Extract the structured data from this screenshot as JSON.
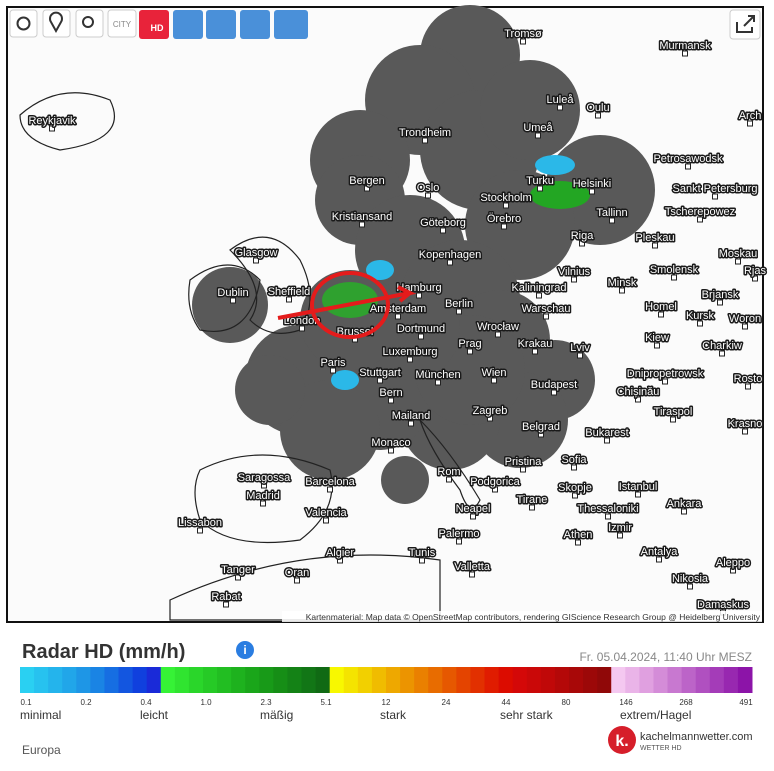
{
  "toolbar": {
    "city": "CITY",
    "hd": "HD"
  },
  "map": {
    "cities": [
      "Tromsø",
      "Murmansk",
      "Luleå",
      "Oulu",
      "Arch",
      "Reykjavik",
      "Trondheim",
      "Umeå",
      "Petrosawodsk",
      "Bergen",
      "Oslo",
      "Turku",
      "Helsinki",
      "Sankt Petersburg",
      "Stockholm",
      "Kristiansand",
      "Göteborg",
      "Örebro",
      "Tallinn",
      "Tscherepowez",
      "Riga",
      "Pleskau",
      "Glasgow",
      "Kopenhagen",
      "Moskau",
      "Vilnius",
      "Smolensk",
      "Rjas",
      "Minsk",
      "Dublin",
      "Sheffield",
      "Hamburg",
      "Kaliningrad",
      "Brjansk",
      "Berlin",
      "Amsterdam",
      "Warschau",
      "Homel",
      "London",
      "Wrocław",
      "Kursk",
      "Woron",
      "Brussel",
      "Dortmund",
      "Kiew",
      "Prag",
      "Krakau",
      "Lviv",
      "Charkiw",
      "Luxemburg",
      "Paris",
      "Stuttgart",
      "München",
      "Wien",
      "Dnipropetrowsk",
      "Rosto",
      "Budapest",
      "Chișinău",
      "Bern",
      "Tiraspol",
      "Mailand",
      "Zagreb",
      "Krasno",
      "Belgrad",
      "Bukarest",
      "Monaco",
      "Pristina",
      "Sofia",
      "Rom",
      "Saragossa",
      "Barcelona",
      "Podgorica",
      "Istanbul",
      "Skopje",
      "Madrid",
      "Tirane",
      "Ankara",
      "Neapel",
      "Thessaloniki",
      "Valencia",
      "Lissabon",
      "Izmir",
      "Palermo",
      "Athen",
      "Algier",
      "Tunis",
      "Antalya",
      "Valletta",
      "Aleppo",
      "Tanger",
      "Oran",
      "Nikosia",
      "Rabat",
      "Damaskus"
    ],
    "attribution": "Kartenmaterial: Map data © OpenStreetMap contributors, rendering GIScience Research Group @ Heidelberg University"
  },
  "legend": {
    "title": "Radar HD (mm/h)",
    "timestamp": "Fr. 05.04.2024, 11:40 Uhr MESZ",
    "ticks": [
      "0.1",
      "0.2",
      "0.4",
      "1.0",
      "2.3",
      "5.1",
      "12",
      "24",
      "44",
      "80",
      "146",
      "268",
      "491"
    ],
    "levels": [
      "minimal",
      "leicht",
      "mäßig",
      "stark",
      "sehr stark",
      "extrem/Hagel"
    ],
    "colors": [
      "#2ad0f2",
      "#27c2ef",
      "#24b4ec",
      "#21a6e9",
      "#1e96e6",
      "#1a84e4",
      "#166ee2",
      "#1356e0",
      "#1040de",
      "#1a2ad8",
      "#36f236",
      "#30e430",
      "#2ad62a",
      "#26ca26",
      "#22be22",
      "#1eb21e",
      "#1aa61a",
      "#189a18",
      "#168e16",
      "#148216",
      "#127616",
      "#106a14",
      "#f8f800",
      "#f4e400",
      "#f2d000",
      "#f0bc00",
      "#eea800",
      "#ec9400",
      "#ea8000",
      "#e86c00",
      "#e65800",
      "#e44400",
      "#e23000",
      "#e01c00",
      "#dc0c00",
      "#d40808",
      "#ca0808",
      "#c00808",
      "#b40808",
      "#a80808",
      "#9c0808",
      "#900808",
      "#f4c8f0",
      "#eab4e8",
      "#e0a0e0",
      "#d48cd8",
      "#c878d0",
      "#bc64c8",
      "#b050c0",
      "#a43cb8",
      "#9828b0",
      "#8c14a8"
    ]
  },
  "region": "Europa",
  "brand": {
    "name": "kachelmannwetter.com",
    "tagline": "WETTER HD"
  }
}
